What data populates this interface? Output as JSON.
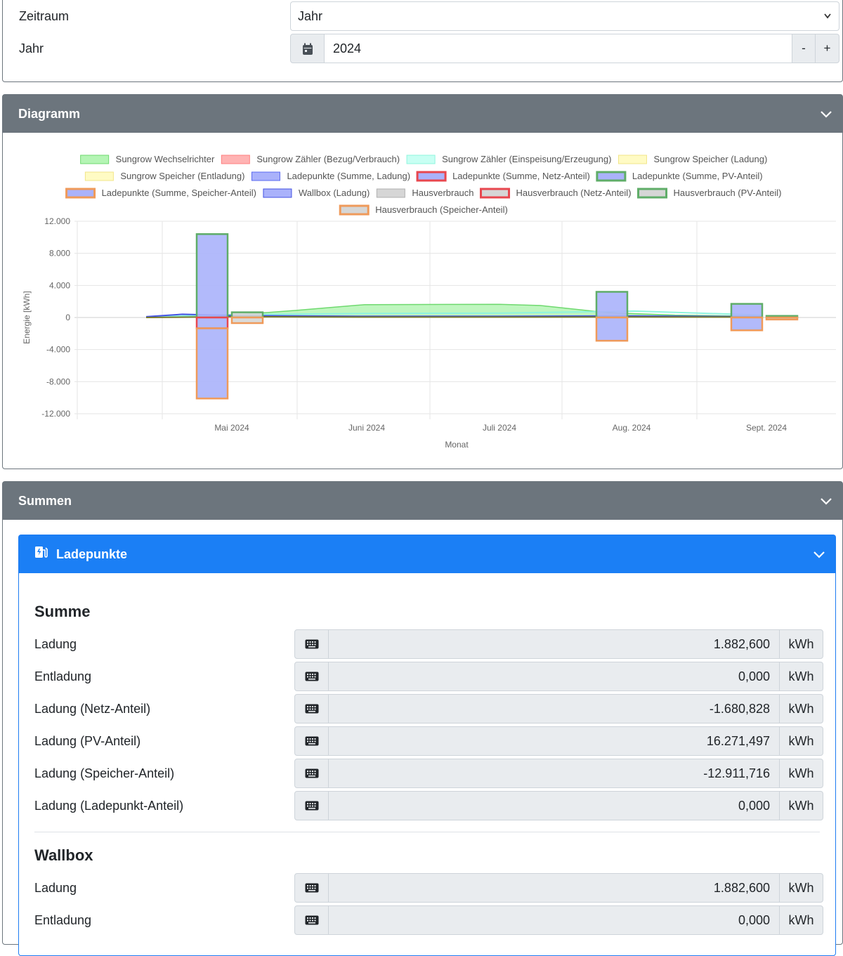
{
  "range": {
    "period_label": "Zeitraum",
    "period_value": "Jahr",
    "year_label": "Jahr",
    "year_value": "2024",
    "minus": "-",
    "plus": "+"
  },
  "chart_panel": {
    "title": "Diagramm"
  },
  "sums_panel": {
    "title": "Summen"
  },
  "chargepoints": {
    "title": "Ladepunkte",
    "sum_title": "Summe",
    "sum_rows": [
      {
        "label": "Ladung",
        "value": "1.882,600",
        "unit": "kWh"
      },
      {
        "label": "Entladung",
        "value": "0,000",
        "unit": "kWh"
      },
      {
        "label": "Ladung (Netz-Anteil)",
        "value": "-1.680,828",
        "unit": "kWh"
      },
      {
        "label": "Ladung (PV-Anteil)",
        "value": "16.271,497",
        "unit": "kWh"
      },
      {
        "label": "Ladung (Speicher-Anteil)",
        "value": "-12.911,716",
        "unit": "kWh"
      },
      {
        "label": "Ladung (Ladepunkt-Anteil)",
        "value": "0,000",
        "unit": "kWh"
      }
    ],
    "wallbox_title": "Wallbox",
    "wallbox_rows": [
      {
        "label": "Ladung",
        "value": "1.882,600",
        "unit": "kWh"
      },
      {
        "label": "Entladung",
        "value": "0,000",
        "unit": "kWh"
      }
    ]
  },
  "chart_data": {
    "type": "bar",
    "xlabel": "Monat",
    "ylabel": "Energie [kWh]",
    "ylim": [
      -12000,
      12000
    ],
    "yticks": [
      12000,
      8000,
      4000,
      0,
      -4000,
      -8000,
      -12000
    ],
    "ytick_labels": [
      "12.000",
      "8.000",
      "4.000",
      "0",
      "-4.000",
      "-8.000",
      "-12.000"
    ],
    "categories": [
      "Mai 2024",
      "Juni 2024",
      "Juli 2024",
      "Aug. 2024",
      "Sept. 2024"
    ],
    "legend": [
      {
        "name": "Sungrow Wechselrichter",
        "fill": "#b4f5b4",
        "stroke": "#6fd96f"
      },
      {
        "name": "Sungrow Zähler (Bezug/Verbrauch)",
        "fill": "#ffb3b3",
        "stroke": "#ff7f7f"
      },
      {
        "name": "Sungrow Zähler (Einspeisung/Erzeugung)",
        "fill": "#c8fff3",
        "stroke": "#8ff5de"
      },
      {
        "name": "Sungrow Speicher (Ladung)",
        "fill": "#fffbc4",
        "stroke": "#f2e58a"
      },
      {
        "name": "Sungrow Speicher (Entladung)",
        "fill": "#fffbc4",
        "stroke": "#f2e58a"
      },
      {
        "name": "Ladepunkte (Summe, Ladung)",
        "fill": "#aab2fb",
        "stroke": "#5b6af0"
      },
      {
        "name": "Ladepunkte (Summe, Netz-Anteil)",
        "fill": "#aab2fb",
        "stroke": "#e8474f"
      },
      {
        "name": "Ladepunkte (Summe, PV-Anteil)",
        "fill": "#aab2fb",
        "stroke": "#5fad68"
      },
      {
        "name": "Ladepunkte (Summe, Speicher-Anteil)",
        "fill": "#aab2fb",
        "stroke": "#ef9a5a"
      },
      {
        "name": "Wallbox (Ladung)",
        "fill": "#aab2fb",
        "stroke": "#4452e3"
      },
      {
        "name": "Hausverbrauch",
        "fill": "#d6d6d6",
        "stroke": "#b0b0b0"
      },
      {
        "name": "Hausverbrauch (Netz-Anteil)",
        "fill": "#d6d6d6",
        "stroke": "#e8474f"
      },
      {
        "name": "Hausverbrauch (PV-Anteil)",
        "fill": "#d6d6d6",
        "stroke": "#5fad68"
      },
      {
        "name": "Hausverbrauch (Speicher-Anteil)",
        "fill": "#d6d6d6",
        "stroke": "#ef9a5a"
      }
    ],
    "bars": [
      {
        "name": "Ladepunkte (Summe, PV-Anteil)",
        "category": "Mai 2024",
        "slot": "left",
        "from": 0,
        "to": 10400,
        "fill": "#aab2fb",
        "stroke": "#5fad68"
      },
      {
        "name": "Ladepunkte (Summe, Netz-Anteil)",
        "category": "Mai 2024",
        "slot": "left",
        "from": 0,
        "to": -1350,
        "fill": "#aab2fb",
        "stroke": "#e8474f"
      },
      {
        "name": "Ladepunkte (Summe, Speicher-Anteil)",
        "category": "Mai 2024",
        "slot": "left",
        "from": -1350,
        "to": -10100,
        "fill": "#aab2fb",
        "stroke": "#ef9a5a"
      },
      {
        "name": "Hausverbrauch (PV-Anteil)",
        "category": "Mai 2024",
        "slot": "right",
        "from": 0,
        "to": 650,
        "fill": "#d6d6d6",
        "stroke": "#5fad68"
      },
      {
        "name": "Hausverbrauch (Speicher-Anteil)",
        "category": "Mai 2024",
        "slot": "right",
        "from": 0,
        "to": -700,
        "fill": "#d6d6d6",
        "stroke": "#ef9a5a"
      },
      {
        "name": "Ladepunkte (Summe, PV-Anteil)",
        "category": "Aug. 2024",
        "slot": "left",
        "from": 0,
        "to": 3200,
        "fill": "#aab2fb",
        "stroke": "#5fad68"
      },
      {
        "name": "Ladepunkte (Summe, Speicher-Anteil)",
        "category": "Aug. 2024",
        "slot": "left",
        "from": 0,
        "to": -2900,
        "fill": "#aab2fb",
        "stroke": "#ef9a5a"
      },
      {
        "name": "Ladepunkte (Summe, PV-Anteil)",
        "category": "Sept. 2024",
        "slot": "left",
        "from": 0,
        "to": 1700,
        "fill": "#aab2fb",
        "stroke": "#5fad68"
      },
      {
        "name": "Ladepunkte (Summe, Speicher-Anteil)",
        "category": "Sept. 2024",
        "slot": "left",
        "from": 0,
        "to": -1600,
        "fill": "#aab2fb",
        "stroke": "#ef9a5a"
      },
      {
        "name": "Hausverbrauch (PV-Anteil)",
        "category": "Sept. 2024",
        "slot": "right",
        "from": 0,
        "to": 200,
        "fill": "#d6d6d6",
        "stroke": "#5fad68"
      },
      {
        "name": "Hausverbrauch (Speicher-Anteil)",
        "category": "Sept. 2024",
        "slot": "right",
        "from": 0,
        "to": -250,
        "fill": "#d6d6d6",
        "stroke": "#ef9a5a"
      }
    ],
    "lines": [
      {
        "name": "Sungrow Wechselrichter",
        "fill": "#b4f5b4",
        "stroke": "#6fd96f",
        "area": true,
        "x": [
          -0.62,
          -0.35,
          0.1,
          0.5,
          1.0,
          2.0,
          2.3,
          2.8,
          3.3,
          3.95
        ],
        "y": [
          50,
          200,
          400,
          900,
          1600,
          1650,
          1500,
          600,
          300,
          150
        ]
      },
      {
        "name": "Sungrow Zähler (Einspeisung/Erzeugung)",
        "fill": "#c8fff3",
        "stroke": "#8ff5de",
        "area": false,
        "x": [
          -0.62,
          0,
          1,
          2,
          3,
          3.95
        ],
        "y": [
          80,
          350,
          500,
          550,
          800,
          300
        ]
      },
      {
        "name": "Wallbox (Ladung)",
        "fill": "#aab2fb",
        "stroke": "#4452e3",
        "area": false,
        "x": [
          -0.62,
          -0.35,
          0,
          1,
          2,
          3,
          3.95
        ],
        "y": [
          100,
          400,
          250,
          150,
          150,
          200,
          100
        ]
      },
      {
        "name": "Sungrow Speicher (Ladung)",
        "fill": "#fffbc4",
        "stroke": "#7a7a2a",
        "area": false,
        "x": [
          -0.62,
          0,
          1,
          2,
          3,
          3.95
        ],
        "y": [
          0,
          100,
          50,
          50,
          60,
          50
        ]
      }
    ]
  }
}
